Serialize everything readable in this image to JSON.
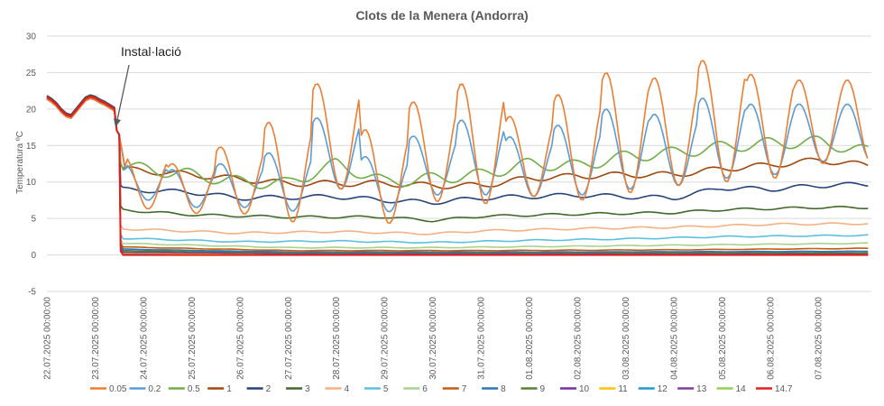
{
  "chart_data": {
    "type": "line",
    "title": "Clots de la Menera (Andorra)",
    "ylabel": "Temperatura ºC",
    "xlabel": "",
    "ylim": [
      -5,
      30
    ],
    "yticks": [
      -5,
      0,
      5,
      10,
      15,
      20,
      25,
      30
    ],
    "x_ticks": [
      "22.07.2025 00:00:00",
      "23.07.2025 00:00:00",
      "24.07.2025 00:00:00",
      "25.07.2025 00:00:00",
      "26.07.2025 00:00:00",
      "27.07.2025 00:00:00",
      "28.07.2025 00:00:00",
      "29.07.2025 00:00:00",
      "30.07.2025 00:00:00",
      "31.07.2025 00:00:00",
      "01.08.2025 00:00:00",
      "02.08.2025 00:00:00",
      "03.08.2025 00:00:00",
      "04.08.2025 00:00:00",
      "05.08.2025 00:00:00",
      "06.08.2025 00:00:00",
      "07.08.2025 00:00:00"
    ],
    "xlim_days": [
      0,
      17.1
    ],
    "grid": true,
    "legend_position": "bottom",
    "annotation": {
      "text": "Instal·lació",
      "day": 1.5,
      "value": 17
    },
    "installation_day": 1.5,
    "pre_installation": {
      "x": [
        0,
        0.1,
        0.2,
        0.3,
        0.4,
        0.5,
        0.6,
        0.7,
        0.8,
        0.9,
        1.0,
        1.1,
        1.2,
        1.3,
        1.4,
        1.45,
        1.5
      ],
      "y": [
        21.6,
        21.2,
        20.6,
        19.8,
        19.2,
        19.0,
        19.8,
        20.6,
        21.4,
        21.7,
        21.5,
        21.1,
        20.8,
        20.4,
        20.0,
        17.0,
        16.5
      ]
    },
    "series": [
      {
        "name": "0.05",
        "color": "#ed7d31",
        "kind": "daily",
        "base": 11.0,
        "peaks": [
          13.5,
          12.5,
          14.8,
          18.2,
          23.5,
          17.2,
          21.0,
          23.5,
          19.0,
          22.0,
          25.0,
          24.3,
          26.7,
          24.8,
          24.0
        ],
        "troughs": [
          6.3,
          5.7,
          5.6,
          4.5,
          9.0,
          4.3,
          7.3,
          7.0,
          8.0,
          7.5,
          8.5,
          9.5,
          10.0,
          10.5,
          12.5
        ]
      },
      {
        "name": "0.2",
        "color": "#5b9bd5",
        "kind": "daily",
        "base": 10.5,
        "peaks": [
          12.5,
          11.7,
          12.5,
          14.0,
          18.8,
          13.5,
          16.3,
          18.5,
          16.2,
          17.8,
          20.0,
          19.3,
          21.5,
          20.7,
          20.7
        ],
        "troughs": [
          7.5,
          6.5,
          6.5,
          6.0,
          9.0,
          5.9,
          8.2,
          8.2,
          8.0,
          8.2,
          9.0,
          9.5,
          10.5,
          11.0,
          12.8
        ]
      },
      {
        "name": "0.5",
        "color": "#70ad47",
        "kind": "trend",
        "points": [
          [
            1.5,
            12.2
          ],
          [
            3.0,
            11.0
          ],
          [
            4.0,
            10.0
          ],
          [
            5.0,
            9.8
          ],
          [
            6.0,
            12.5
          ],
          [
            7.0,
            10.0
          ],
          [
            8.0,
            10.5
          ],
          [
            9.0,
            11.0
          ],
          [
            10.0,
            12.5
          ],
          [
            11.0,
            12.2
          ],
          [
            12.0,
            13.5
          ],
          [
            13.0,
            14.0
          ],
          [
            14.0,
            14.8
          ],
          [
            15.0,
            15.3
          ],
          [
            16.0,
            15.5
          ],
          [
            17.0,
            14.2
          ]
        ],
        "wiggle": 0.8
      },
      {
        "name": "1",
        "color": "#9e480e",
        "kind": "trend",
        "points": [
          [
            1.5,
            11.8
          ],
          [
            3.0,
            11.0
          ],
          [
            5.0,
            9.8
          ],
          [
            7.0,
            9.8
          ],
          [
            8.0,
            9.5
          ],
          [
            9.0,
            9.5
          ],
          [
            10.0,
            10.5
          ],
          [
            11.0,
            10.8
          ],
          [
            12.0,
            11.0
          ],
          [
            13.0,
            11.0
          ],
          [
            14.0,
            11.8
          ],
          [
            15.0,
            12.3
          ],
          [
            16.0,
            13.0
          ],
          [
            17.0,
            12.3
          ]
        ],
        "wiggle": 0.4
      },
      {
        "name": "2",
        "color": "#264478",
        "kind": "trend",
        "points": [
          [
            1.5,
            9.0
          ],
          [
            3.0,
            8.6
          ],
          [
            4.0,
            7.8
          ],
          [
            6.0,
            8.0
          ],
          [
            7.0,
            7.5
          ],
          [
            8.0,
            7.2
          ],
          [
            9.0,
            7.8
          ],
          [
            10.0,
            8.0
          ],
          [
            11.0,
            8.2
          ],
          [
            12.0,
            8.0
          ],
          [
            13.0,
            7.8
          ],
          [
            14.0,
            9.2
          ],
          [
            15.0,
            9.0
          ],
          [
            16.0,
            9.5
          ],
          [
            17.0,
            9.7
          ]
        ],
        "wiggle": 0.3
      },
      {
        "name": "3",
        "color": "#43682b",
        "kind": "trend",
        "points": [
          [
            1.5,
            6.2
          ],
          [
            3.0,
            5.5
          ],
          [
            5.0,
            5.2
          ],
          [
            7.0,
            5.2
          ],
          [
            8.0,
            4.7
          ],
          [
            9.0,
            5.3
          ],
          [
            11.0,
            5.6
          ],
          [
            13.0,
            5.8
          ],
          [
            14.0,
            6.2
          ],
          [
            16.0,
            6.5
          ],
          [
            17.0,
            6.5
          ]
        ],
        "wiggle": 0.15
      },
      {
        "name": "4",
        "color": "#f4b183",
        "kind": "trend",
        "points": [
          [
            1.5,
            3.6
          ],
          [
            4.0,
            3.0
          ],
          [
            6.0,
            3.2
          ],
          [
            8.0,
            2.9
          ],
          [
            9.0,
            3.3
          ],
          [
            11.0,
            3.6
          ],
          [
            13.0,
            3.8
          ],
          [
            15.0,
            4.2
          ],
          [
            17.0,
            4.3
          ]
        ],
        "wiggle": 0.12
      },
      {
        "name": "5",
        "color": "#5bc0de",
        "kind": "trend",
        "points": [
          [
            1.5,
            2.3
          ],
          [
            4.0,
            1.8
          ],
          [
            6.0,
            1.9
          ],
          [
            8.0,
            1.7
          ],
          [
            10.0,
            2.0
          ],
          [
            12.0,
            2.2
          ],
          [
            14.0,
            2.5
          ],
          [
            17.0,
            2.7
          ]
        ],
        "wiggle": 0.08
      },
      {
        "name": "6",
        "color": "#a9d18e",
        "kind": "trend",
        "points": [
          [
            1.5,
            1.6
          ],
          [
            5.0,
            1.0
          ],
          [
            8.0,
            1.0
          ],
          [
            11.0,
            1.2
          ],
          [
            14.0,
            1.4
          ],
          [
            17.0,
            1.6
          ]
        ],
        "wiggle": 0.05
      },
      {
        "name": "7",
        "color": "#c55a11",
        "kind": "trend",
        "points": [
          [
            1.5,
            1.1
          ],
          [
            5.0,
            0.6
          ],
          [
            9.0,
            0.6
          ],
          [
            13.0,
            0.7
          ],
          [
            17.0,
            0.9
          ]
        ],
        "wiggle": 0.03
      },
      {
        "name": "8",
        "color": "#2e75b6",
        "kind": "trend",
        "points": [
          [
            1.5,
            0.8
          ],
          [
            5.0,
            0.4
          ],
          [
            10.0,
            0.4
          ],
          [
            17.0,
            0.5
          ]
        ],
        "wiggle": 0.02
      },
      {
        "name": "9",
        "color": "#548235",
        "kind": "trend",
        "points": [
          [
            1.5,
            0.6
          ],
          [
            5.0,
            0.3
          ],
          [
            17.0,
            0.3
          ]
        ],
        "wiggle": 0.02
      },
      {
        "name": "10",
        "color": "#7030a0",
        "kind": "trend",
        "points": [
          [
            1.5,
            0.4
          ],
          [
            5.0,
            0.2
          ],
          [
            17.0,
            0.2
          ]
        ],
        "wiggle": 0.01
      },
      {
        "name": "11",
        "color": "#ffc000",
        "kind": "trend",
        "points": [
          [
            1.5,
            0.3
          ],
          [
            5.0,
            0.1
          ],
          [
            17.0,
            0.1
          ]
        ],
        "wiggle": 0.01
      },
      {
        "name": "12",
        "color": "#1f9bcf",
        "kind": "trend",
        "points": [
          [
            1.5,
            0.2
          ],
          [
            17.0,
            0.1
          ]
        ],
        "wiggle": 0.0
      },
      {
        "name": "13",
        "color": "#7f3f98",
        "kind": "trend",
        "points": [
          [
            1.5,
            0.1
          ],
          [
            17.0,
            0.05
          ]
        ],
        "wiggle": 0.0
      },
      {
        "name": "14",
        "color": "#92d050",
        "kind": "trend",
        "points": [
          [
            1.5,
            0.05
          ],
          [
            17.0,
            0.05
          ]
        ],
        "wiggle": 0.0
      },
      {
        "name": "14.7",
        "color": "#e01e1e",
        "kind": "trend",
        "points": [
          [
            1.5,
            0.0
          ],
          [
            17.0,
            0.0
          ]
        ],
        "wiggle": 0.0
      }
    ]
  }
}
